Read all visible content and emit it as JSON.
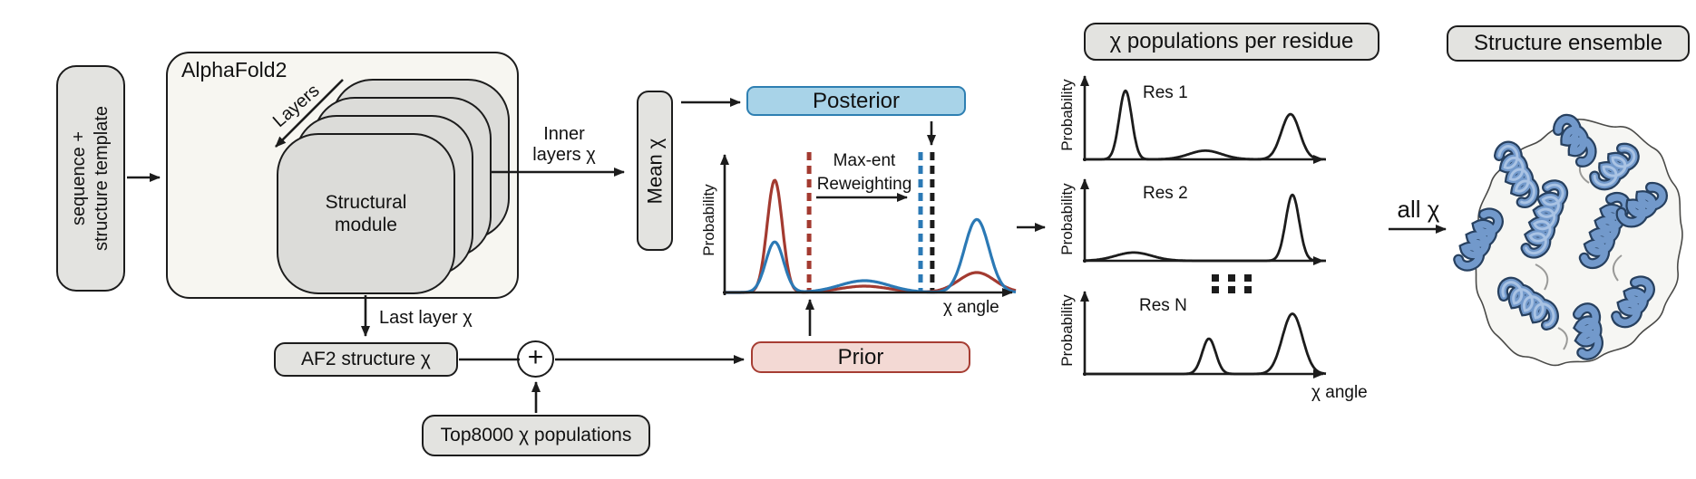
{
  "figure": {
    "input_box": {
      "line1": "sequence +",
      "line2": "structure template"
    },
    "alphafold": {
      "title": "AlphaFold2",
      "layers_label": "Layers",
      "module_line1": "Structural",
      "module_line2": "module"
    },
    "inner_layers": {
      "line1": "Inner",
      "line2": "layers χ"
    },
    "last_layer_label": "Last layer χ",
    "af2_structure_label": "AF2 structure χ",
    "plus_label": "+",
    "top8000_label": "Top8000 χ populations",
    "mean_chi_label": "Mean χ",
    "posterior_label": "Posterior",
    "prior_label": "Prior",
    "populations_header": "χ populations per residue",
    "all_chi_label": "all χ",
    "ensemble_header": "Structure ensemble"
  },
  "colors": {
    "box_fill": "#e3e3e0",
    "box_border": "#1c1c1c",
    "alphafold_fill": "#f7f6f1",
    "layer_fill": "#dcdcd9",
    "posterior_fill": "#a8d3e8",
    "posterior_border": "#2e7fb2",
    "prior_fill": "#f3d9d4",
    "prior_border": "#a63d33",
    "prior_curve": "#a33a30",
    "posterior_curve": "#2b79b5"
  },
  "chart_data": [
    {
      "id": "reweighting-chart",
      "type": "line",
      "xlabel": "χ angle",
      "ylabel": "Probability",
      "annotation_lines": [
        "Max-ent",
        "Reweighting"
      ],
      "legend": false,
      "grid": false,
      "ylim": [
        0,
        1
      ],
      "series": [
        {
          "name": "Prior",
          "color": "#a33a30",
          "peaks": [
            {
              "center": 0.172,
              "sigma": 0.026,
              "height": 0.8
            },
            {
              "center": 0.48,
              "sigma": 0.085,
              "height": 0.045
            },
            {
              "center": 0.866,
              "sigma": 0.062,
              "height": 0.142
            }
          ]
        },
        {
          "name": "Posterior",
          "color": "#2b79b5",
          "peaks": [
            {
              "center": 0.172,
              "sigma": 0.031,
              "height": 0.36
            },
            {
              "center": 0.48,
              "sigma": 0.085,
              "height": 0.084
            },
            {
              "center": 0.866,
              "sigma": 0.042,
              "height": 0.52
            }
          ]
        }
      ],
      "vlines": [
        {
          "x": 0.29,
          "color": "#a33a30",
          "style": "dashed"
        },
        {
          "x": 0.673,
          "color": "#2b79b5",
          "style": "dashed"
        },
        {
          "x": 0.713,
          "color": "#1c1c1c",
          "style": "dashed"
        }
      ]
    },
    {
      "id": "res1-chart",
      "type": "line",
      "label": "Res 1",
      "ylabel": "Probability",
      "xlabel": "",
      "color": "#1c1c1c",
      "peaks": [
        {
          "center": 0.169,
          "sigma": 0.026,
          "height": 0.79
        },
        {
          "center": 0.5,
          "sigma": 0.068,
          "height": 0.1
        },
        {
          "center": 0.853,
          "sigma": 0.038,
          "height": 0.52
        }
      ]
    },
    {
      "id": "res2-chart",
      "type": "line",
      "label": "Res 2",
      "ylabel": "Probability",
      "xlabel": "",
      "color": "#1c1c1c",
      "peaks": [
        {
          "center": 0.203,
          "sigma": 0.075,
          "height": 0.1
        },
        {
          "center": 0.861,
          "sigma": 0.028,
          "height": 0.8
        }
      ]
    },
    {
      "id": "resN-chart",
      "type": "line",
      "label": "Res N",
      "ylabel": "Probability",
      "xlabel": "χ angle",
      "color": "#1c1c1c",
      "peaks": [
        {
          "center": 0.515,
          "sigma": 0.028,
          "height": 0.41
        },
        {
          "center": 0.861,
          "sigma": 0.042,
          "height": 0.7
        }
      ]
    }
  ]
}
